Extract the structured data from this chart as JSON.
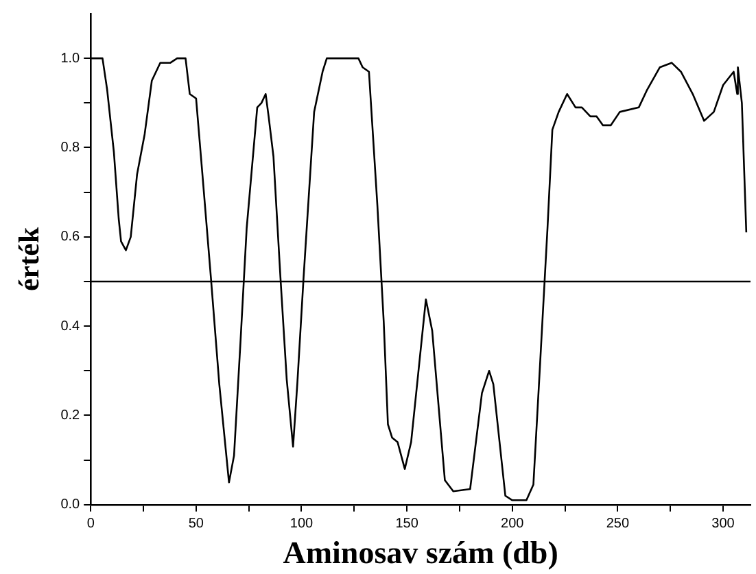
{
  "chart_data": {
    "type": "line",
    "xlabel": "Aminosav szám (db)",
    "ylabel": "érték",
    "grid": false,
    "legend": false,
    "marker": "none",
    "line_style": "solid",
    "xlim": [
      0,
      313
    ],
    "ylim": [
      0,
      1.1
    ],
    "xticks": [
      0,
      {
        "value": 25,
        "label": null
      },
      50,
      {
        "value": 75,
        "label": null
      },
      100,
      {
        "value": 125,
        "label": null
      },
      150,
      {
        "value": 175,
        "label": null
      },
      200,
      {
        "value": 225,
        "label": null
      },
      250,
      {
        "value": 275,
        "label": null
      },
      300
    ],
    "yticks": [
      {
        "value": 0,
        "label": "0.0"
      },
      {
        "value": 0.1,
        "label": null
      },
      0.2,
      {
        "value": 0.3,
        "label": null
      },
      0.4,
      {
        "value": 0.5,
        "label": null
      },
      0.6,
      {
        "value": 0.7,
        "label": null
      },
      0.8,
      {
        "value": 0.9,
        "label": null
      },
      {
        "value": 1,
        "label": "1.0"
      }
    ],
    "ref_lines": [
      {
        "axis": "y",
        "value": 0.5,
        "color": "#000000"
      }
    ],
    "series": [
      {
        "color": "#000000",
        "x": [
          0,
          5.6,
          7.8,
          11,
          13.3,
          14.4,
          16.7,
          19,
          22,
          25.6,
          29,
          33,
          37.8,
          41,
          45,
          47,
          50,
          53,
          57,
          61,
          65.6,
          68,
          71,
          74,
          79,
          81,
          83,
          84.4,
          86.7,
          90,
          93,
          96,
          98,
          101,
          106,
          110,
          112,
          127,
          129,
          132,
          136,
          139,
          141,
          143,
          145.6,
          149,
          152,
          159,
          162,
          168,
          172,
          180,
          185.6,
          189,
          191,
          196.7,
          200,
          206.7,
          210,
          213,
          216.7,
          219,
          222,
          226,
          230,
          233,
          237,
          240,
          243,
          246.7,
          251,
          260,
          264,
          270,
          275.6,
          280,
          285.6,
          291,
          295.6,
          300,
          305,
          306.7,
          307,
          308.9,
          311
        ],
        "values": [
          1,
          1,
          0.93,
          0.79,
          0.64,
          0.59,
          0.57,
          0.6,
          0.74,
          0.83,
          0.95,
          0.99,
          0.99,
          1,
          1,
          0.92,
          0.91,
          0.74,
          0.51,
          0.27,
          0.05,
          0.11,
          0.36,
          0.62,
          0.89,
          0.9,
          0.92,
          0.87,
          0.78,
          0.51,
          0.28,
          0.13,
          0.27,
          0.51,
          0.88,
          0.97,
          1,
          1,
          0.98,
          0.97,
          0.67,
          0.41,
          0.18,
          0.15,
          0.14,
          0.08,
          0.14,
          0.46,
          0.39,
          0.055,
          0.03,
          0.035,
          0.25,
          0.3,
          0.27,
          0.02,
          0.01,
          0.01,
          0.045,
          0.3,
          0.62,
          0.84,
          0.88,
          0.92,
          0.89,
          0.89,
          0.87,
          0.87,
          0.85,
          0.85,
          0.88,
          0.89,
          0.93,
          0.98,
          0.99,
          0.97,
          0.92,
          0.86,
          0.88,
          0.94,
          0.97,
          0.92,
          0.98,
          0.9,
          0.61
        ]
      }
    ]
  }
}
